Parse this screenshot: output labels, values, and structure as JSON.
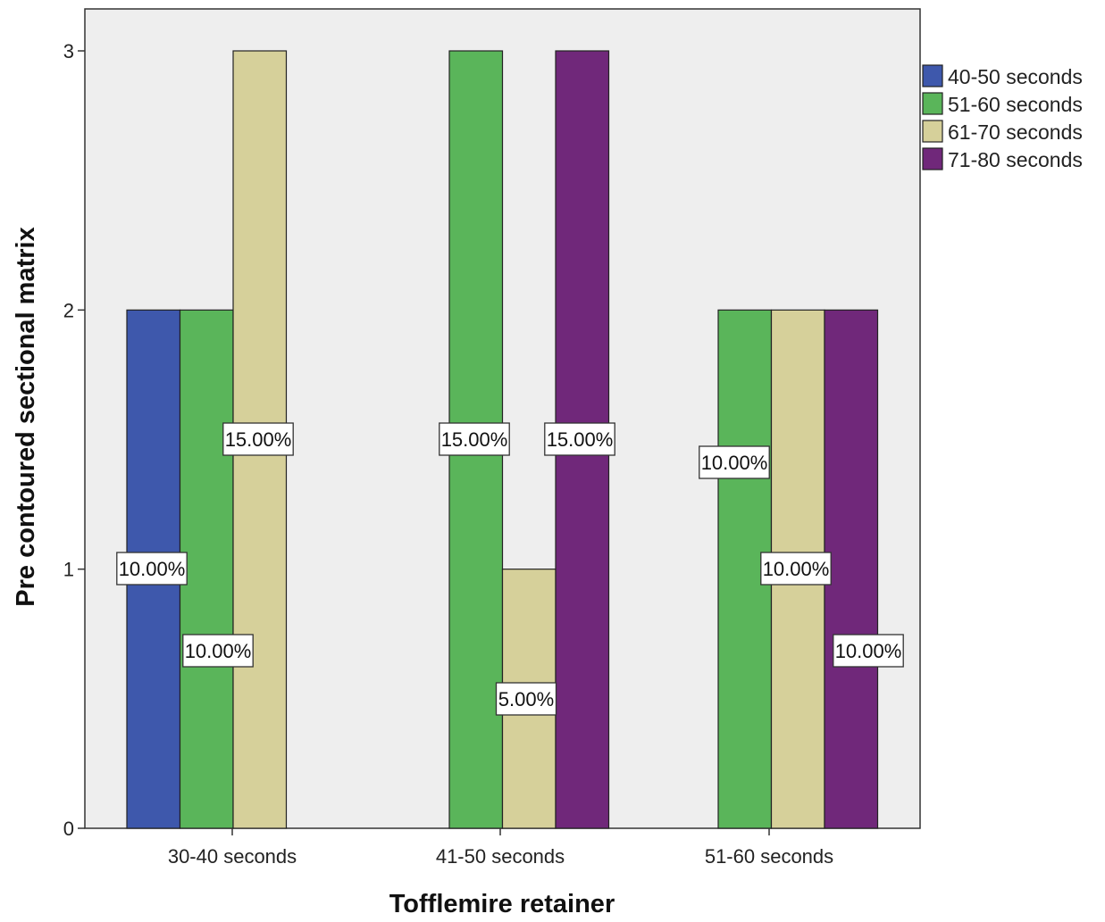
{
  "chart_data": {
    "type": "bar",
    "xlabel": "Tofflemire retainer",
    "ylabel": "Pre contoured sectional matrix",
    "categories": [
      "30-40 seconds",
      "41-50 seconds",
      "51-60 seconds"
    ],
    "ylim": [
      0,
      3
    ],
    "yticks": [
      0,
      1,
      2,
      3
    ],
    "grid": false,
    "legend_position": "top-right",
    "series": [
      {
        "name": "40-50 seconds",
        "color": "#3e58ac",
        "values": [
          2,
          null,
          null
        ],
        "labels": [
          "10.00%",
          "",
          ""
        ]
      },
      {
        "name": "51-60 seconds",
        "color": "#5ab55a",
        "values": [
          2,
          3,
          2
        ],
        "labels": [
          "10.00%",
          "15.00%",
          "10.00%"
        ]
      },
      {
        "name": "61-70 seconds",
        "color": "#d6d09a",
        "values": [
          3,
          1,
          2
        ],
        "labels": [
          "15.00%",
          "5.00%",
          "10.00%"
        ]
      },
      {
        "name": "71-80 seconds",
        "color": "#70287a",
        "values": [
          null,
          3,
          2
        ],
        "labels": [
          "",
          "15.00%",
          "10.00%"
        ]
      }
    ]
  },
  "style": {
    "plot_background": "#eeeeee",
    "axis_color": "#333333"
  }
}
